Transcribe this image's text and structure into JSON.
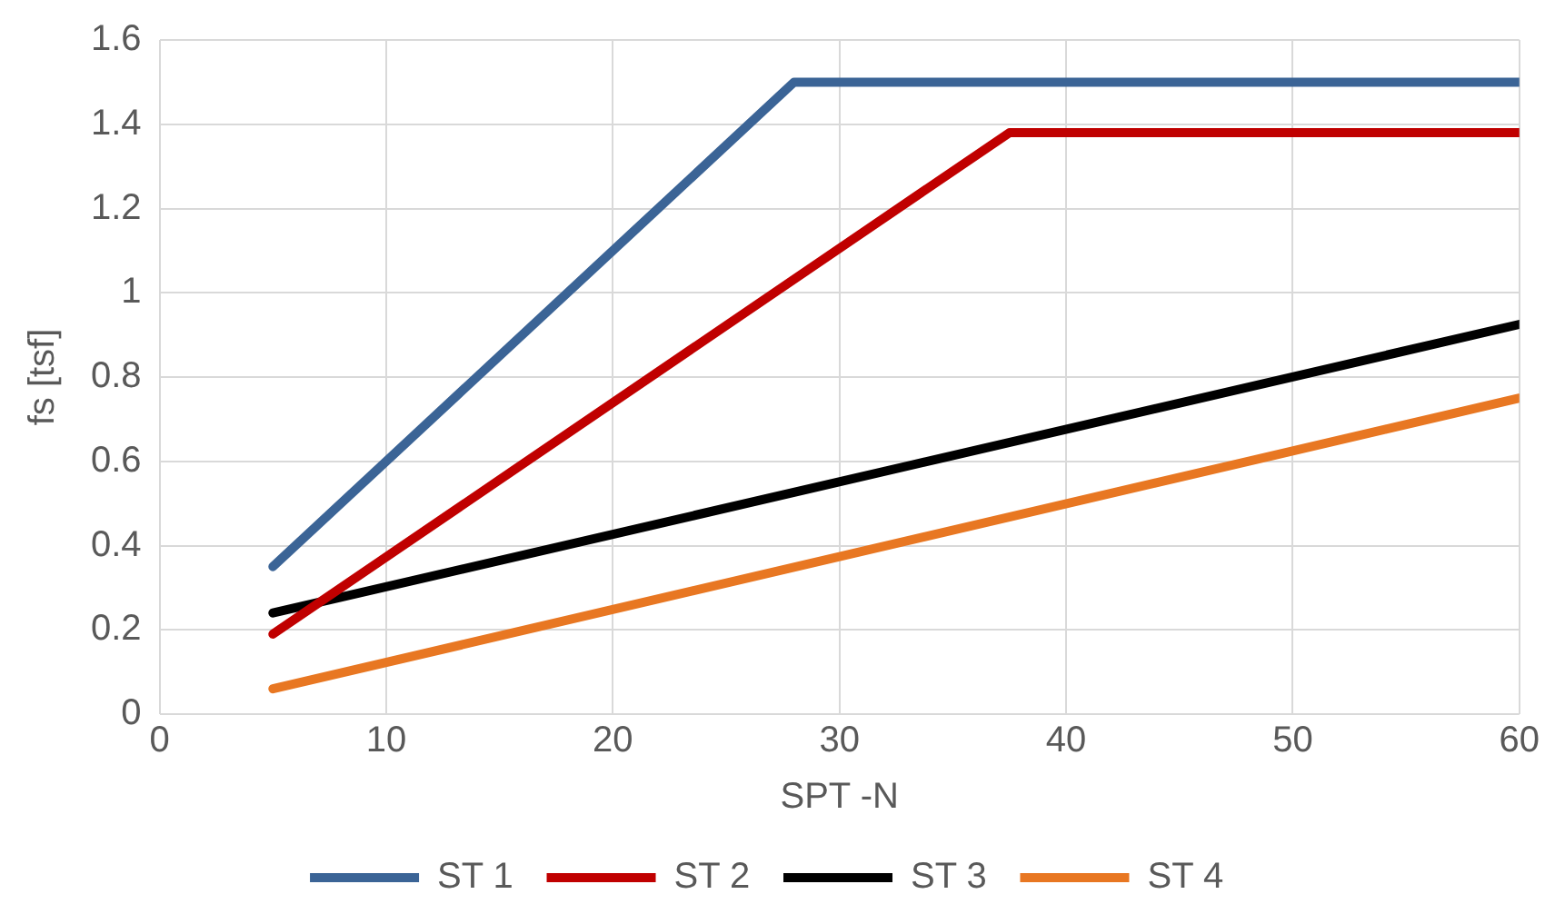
{
  "chart_data": {
    "type": "line",
    "xlabel": "SPT -N",
    "ylabel": "fs [tsf]",
    "xlim": [
      0,
      60
    ],
    "xticks": [
      0,
      10,
      20,
      30,
      40,
      50,
      60
    ],
    "ylim": [
      0,
      1.6
    ],
    "yticks": [
      0,
      {
        "value": 0.2,
        "label": "0.2"
      },
      {
        "value": 0.4,
        "label": "0.4"
      },
      {
        "value": 0.6,
        "label": "0.6"
      },
      {
        "value": 0.8,
        "label": "0.8"
      },
      1,
      {
        "value": 1.2,
        "label": "1.2"
      },
      {
        "value": 1.4,
        "label": "1.4"
      },
      {
        "value": 1.6,
        "label": "1.6"
      }
    ],
    "grid": true,
    "legend": "bottom",
    "marker": "none",
    "line_style": "solid",
    "series": [
      {
        "name": "ST 1",
        "color": "#3b6496",
        "x": [
          5,
          28,
          60
        ],
        "values": [
          0.35,
          1.5,
          1.5
        ]
      },
      {
        "name": "ST 2",
        "color": "#c00000",
        "x": [
          5,
          37.5,
          60
        ],
        "values": [
          0.19,
          1.38,
          1.38
        ]
      },
      {
        "name": "ST 3",
        "color": "#000000",
        "x": [
          5,
          60
        ],
        "values": [
          0.24,
          0.925
        ]
      },
      {
        "name": "ST 4",
        "color": "#e87722",
        "x": [
          5,
          60
        ],
        "values": [
          0.06,
          0.75
        ]
      }
    ]
  }
}
